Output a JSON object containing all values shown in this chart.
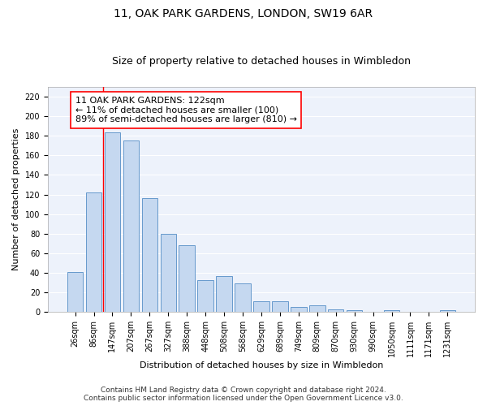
{
  "title": "11, OAK PARK GARDENS, LONDON, SW19 6AR",
  "subtitle": "Size of property relative to detached houses in Wimbledon",
  "xlabel": "Distribution of detached houses by size in Wimbledon",
  "ylabel": "Number of detached properties",
  "categories": [
    "26sqm",
    "86sqm",
    "147sqm",
    "207sqm",
    "267sqm",
    "327sqm",
    "388sqm",
    "448sqm",
    "508sqm",
    "568sqm",
    "629sqm",
    "689sqm",
    "749sqm",
    "809sqm",
    "870sqm",
    "930sqm",
    "990sqm",
    "1050sqm",
    "1111sqm",
    "1171sqm",
    "1231sqm"
  ],
  "values": [
    41,
    122,
    183,
    175,
    116,
    80,
    68,
    33,
    37,
    29,
    11,
    11,
    5,
    7,
    3,
    2,
    0,
    2,
    0,
    0,
    2
  ],
  "bar_color": "#c5d8f0",
  "bar_edge_color": "#6699cc",
  "red_line_x": 1.5,
  "annotation_box_text": "11 OAK PARK GARDENS: 122sqm\n← 11% of detached houses are smaller (100)\n89% of semi-detached houses are larger (810) →",
  "ylim": [
    0,
    230
  ],
  "yticks": [
    0,
    20,
    40,
    60,
    80,
    100,
    120,
    140,
    160,
    180,
    200,
    220
  ],
  "footer_line1": "Contains HM Land Registry data © Crown copyright and database right 2024.",
  "footer_line2": "Contains public sector information licensed under the Open Government Licence v3.0.",
  "background_color": "#edf2fb",
  "title_fontsize": 10,
  "subtitle_fontsize": 9,
  "annotation_fontsize": 8,
  "tick_fontsize": 7,
  "axis_label_fontsize": 8,
  "footer_fontsize": 6.5,
  "ylabel_fontsize": 8
}
